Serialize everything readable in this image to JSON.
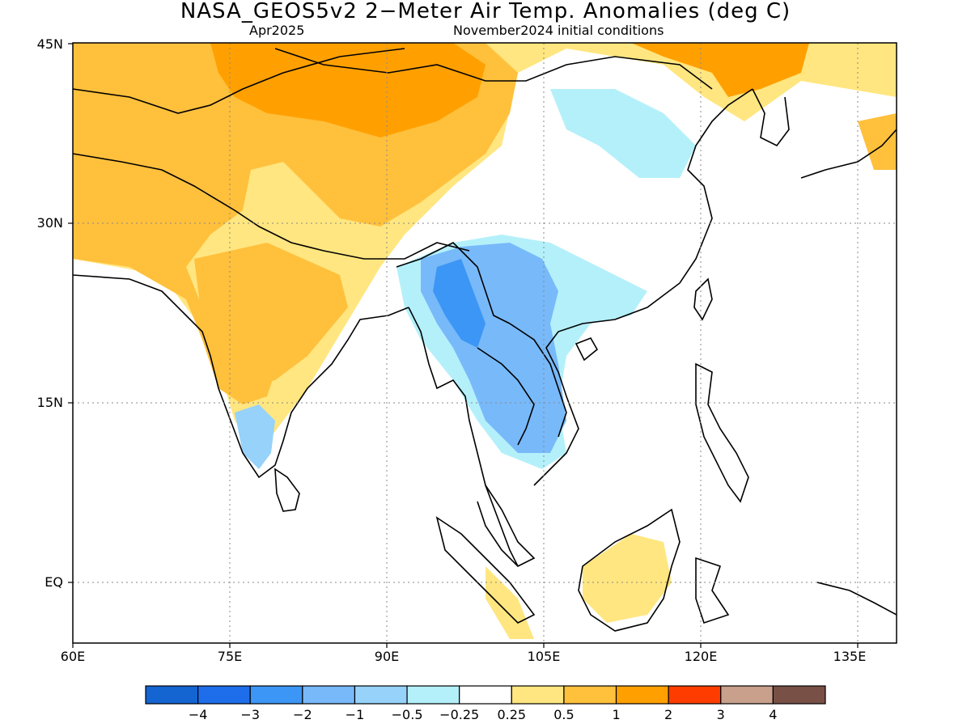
{
  "title": "NASA_GEOS5v2 2−Meter Air Temp. Anomalies (deg C)",
  "subtitle_left": "Apr2025",
  "subtitle_right": "November2024 initial conditions",
  "lat_labels": [
    "45N",
    "30N",
    "15N",
    "EQ"
  ],
  "lon_labels": [
    "60E",
    "75E",
    "90E",
    "105E",
    "120E",
    "135E"
  ],
  "colors": {
    "coastline": "#000000",
    "grid": "#888888",
    "warm_05": "#ffe680",
    "warm_1": "#ffc03c",
    "warm_2": "#ffa000",
    "cool_025": "#b4f0fa",
    "cool_05": "#96d2fa",
    "cool_1": "#78b9fa",
    "cool_2": "#3c96f5"
  },
  "colorbar": {
    "colors": [
      "#1464d2",
      "#1e6eeb",
      "#3c96f5",
      "#78b9fa",
      "#96d2fa",
      "#b4f0fa",
      "#ffffff",
      "#ffe680",
      "#ffc03c",
      "#ffa000",
      "#ff3c00",
      "#c8a08c",
      "#785046"
    ],
    "labels": [
      "−4",
      "−3",
      "−2",
      "−1",
      "−0.5",
      "−0.25",
      "0.25",
      "0.5",
      "1",
      "2",
      "3",
      "4"
    ]
  }
}
